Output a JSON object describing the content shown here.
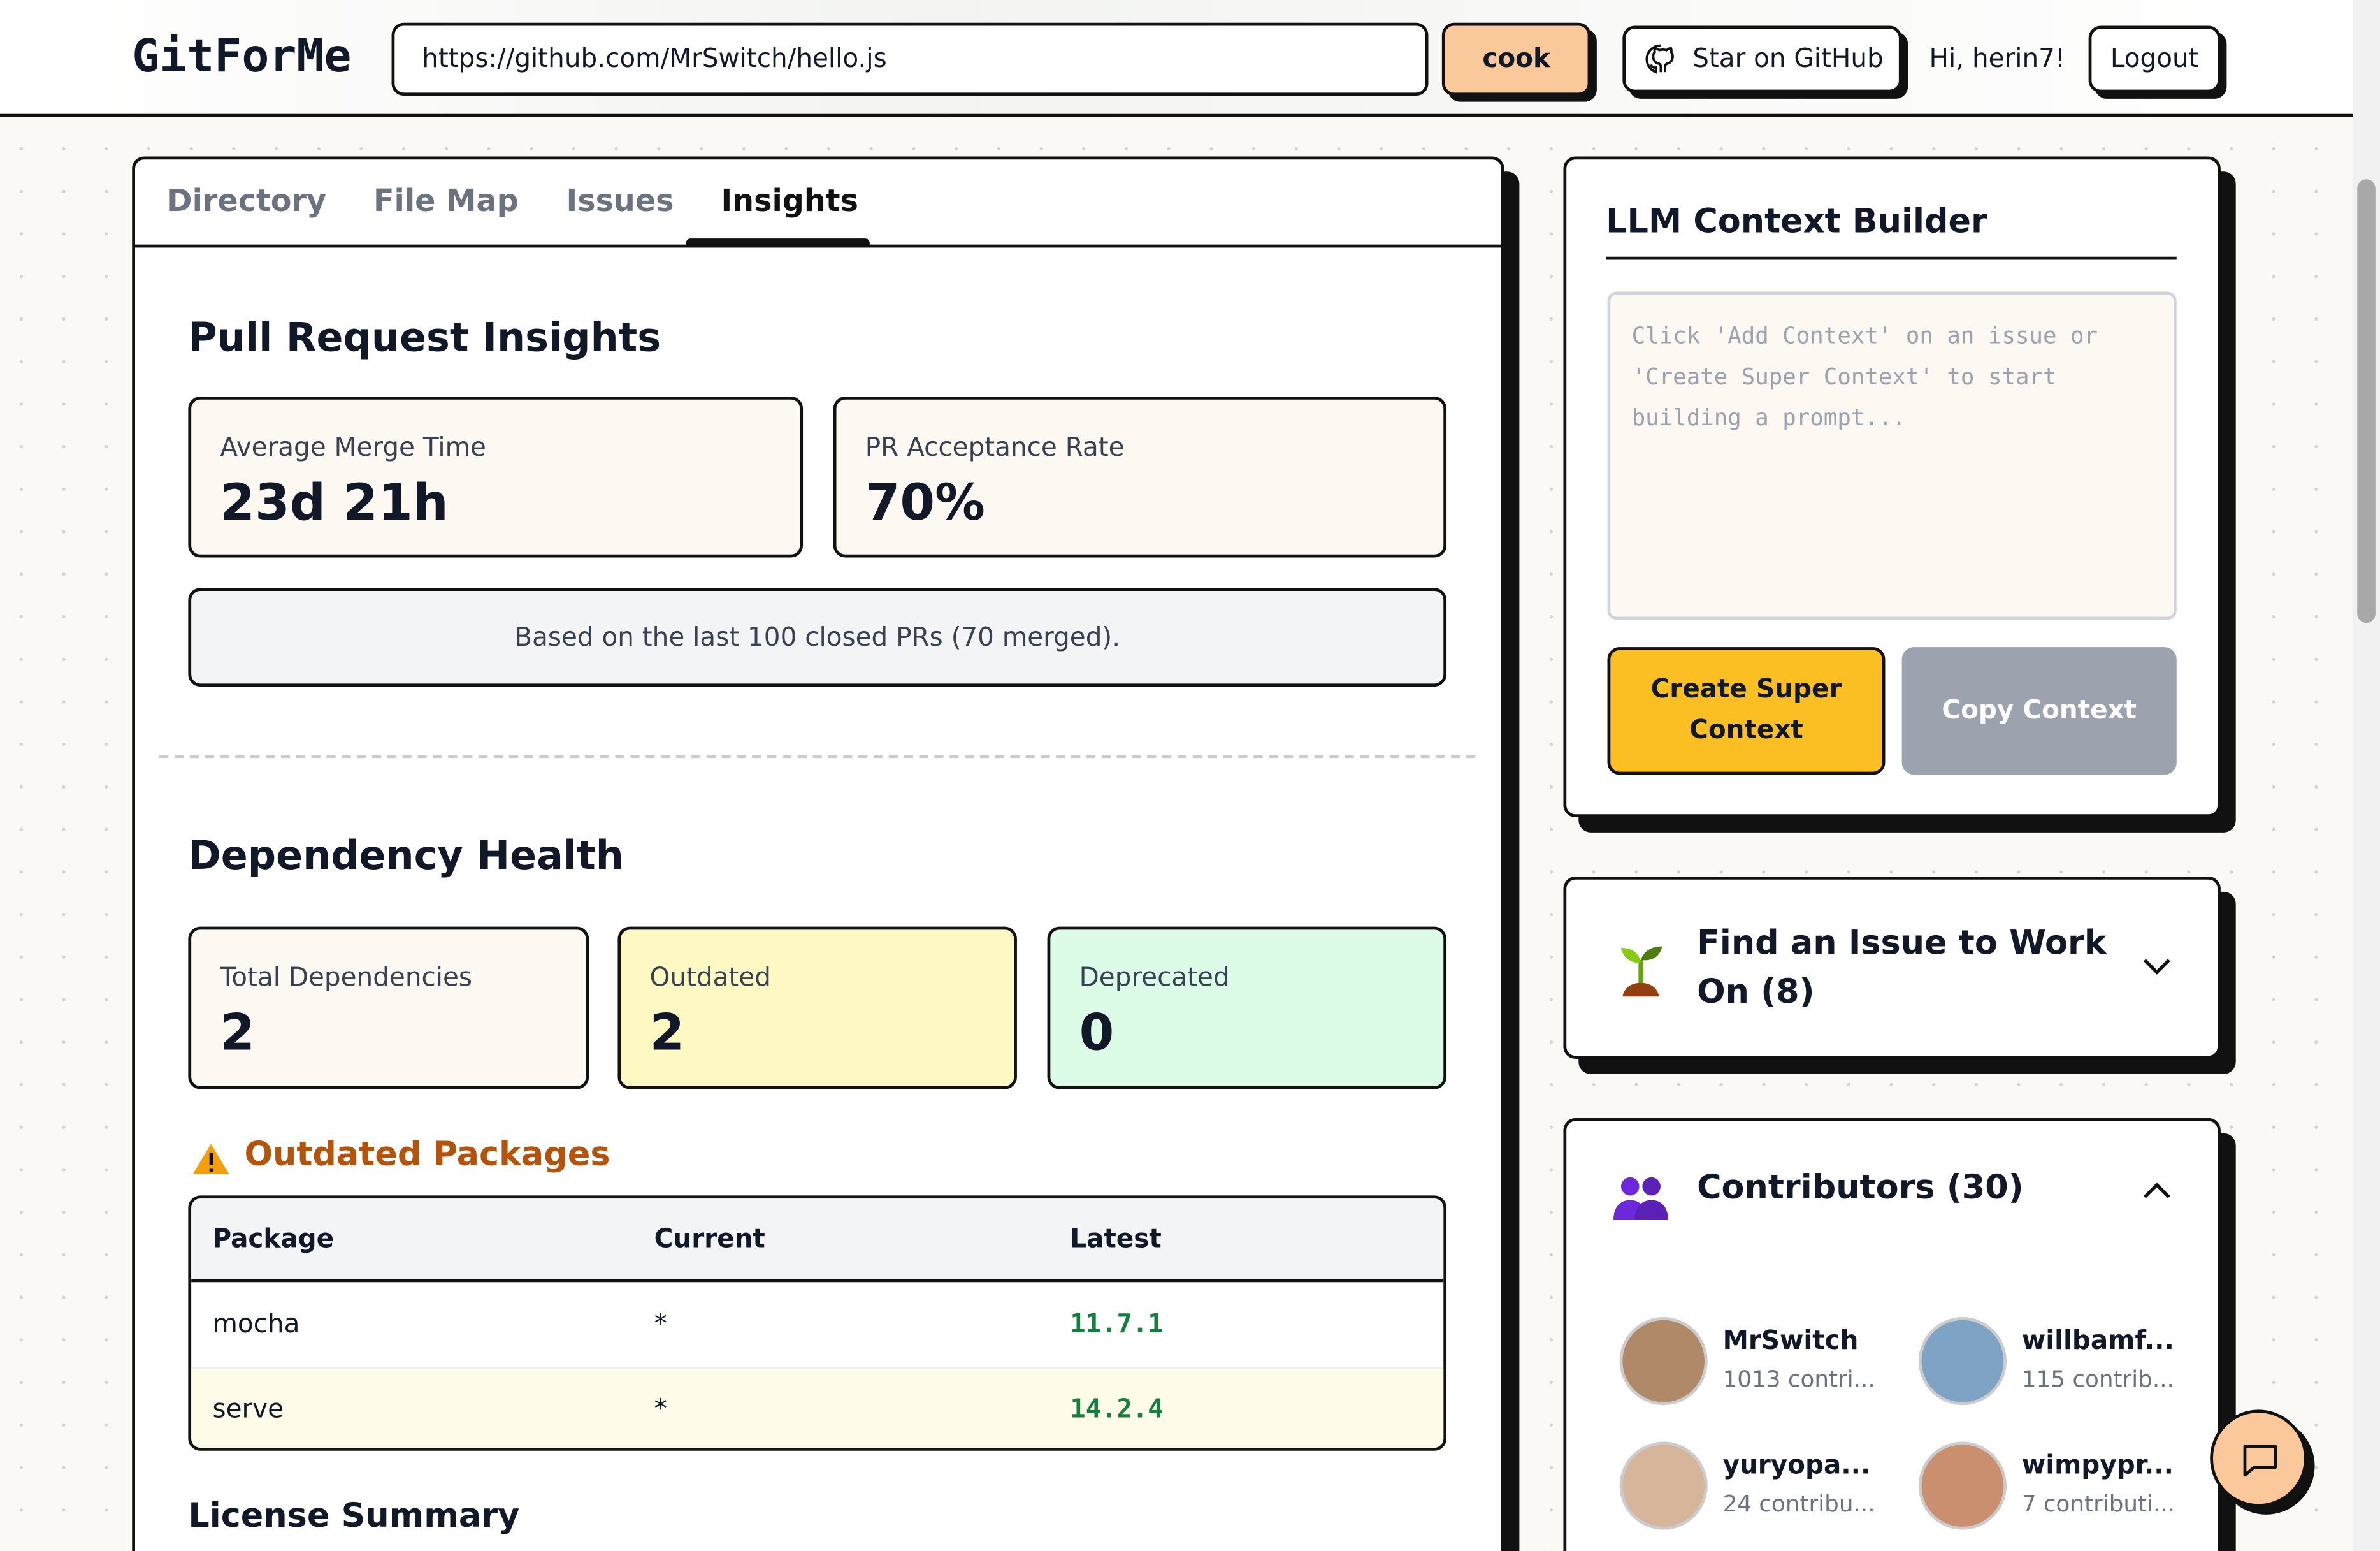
{
  "header": {
    "logo": "GitForMe",
    "url": "https://github.com/MrSwitch/hello.js",
    "cook": "cook",
    "star": "Star on GitHub",
    "greeting": "Hi, herin7!",
    "logout": "Logout"
  },
  "tabs": [
    "Directory",
    "File Map",
    "Issues",
    "Insights"
  ],
  "pr_insights": {
    "title": "Pull Request Insights",
    "cards": [
      {
        "label": "Average Merge Time",
        "value": "23d 21h"
      },
      {
        "label": "PR Acceptance Rate",
        "value": "70%"
      }
    ],
    "note": "Based on the last 100 closed PRs (70 merged)."
  },
  "dependency_health": {
    "title": "Dependency Health",
    "cards": [
      {
        "label": "Total Dependencies",
        "value": 2
      },
      {
        "label": "Outdated",
        "value": 2
      },
      {
        "label": "Deprecated",
        "value": 0
      }
    ],
    "outdated_title": "Outdated Packages",
    "table": {
      "columns": [
        "Package",
        "Current",
        "Latest"
      ],
      "rows": [
        [
          "mocha",
          "*",
          "11.7.1"
        ],
        [
          "serve",
          "*",
          "14.2.4"
        ]
      ]
    }
  },
  "license_title": "License Summary",
  "context_builder": {
    "title": "LLM Context Builder",
    "placeholder": "Click 'Add Context' on an issue or 'Create Super Context' to start building a prompt...",
    "create": "Create Super Context",
    "copy": "Copy Context"
  },
  "find_issue": {
    "title": "Find an Issue to Work On (8)"
  },
  "contributors": {
    "title": "Contributors (30)",
    "list": [
      {
        "name": "MrSwitch",
        "contributions": "1013 contri..."
      },
      {
        "name": "willbamf...",
        "contributions": "115 contrib..."
      },
      {
        "name": "yuryopa...",
        "contributions": "24 contribu..."
      },
      {
        "name": "wimpypr...",
        "contributions": "7 contributi..."
      }
    ]
  }
}
